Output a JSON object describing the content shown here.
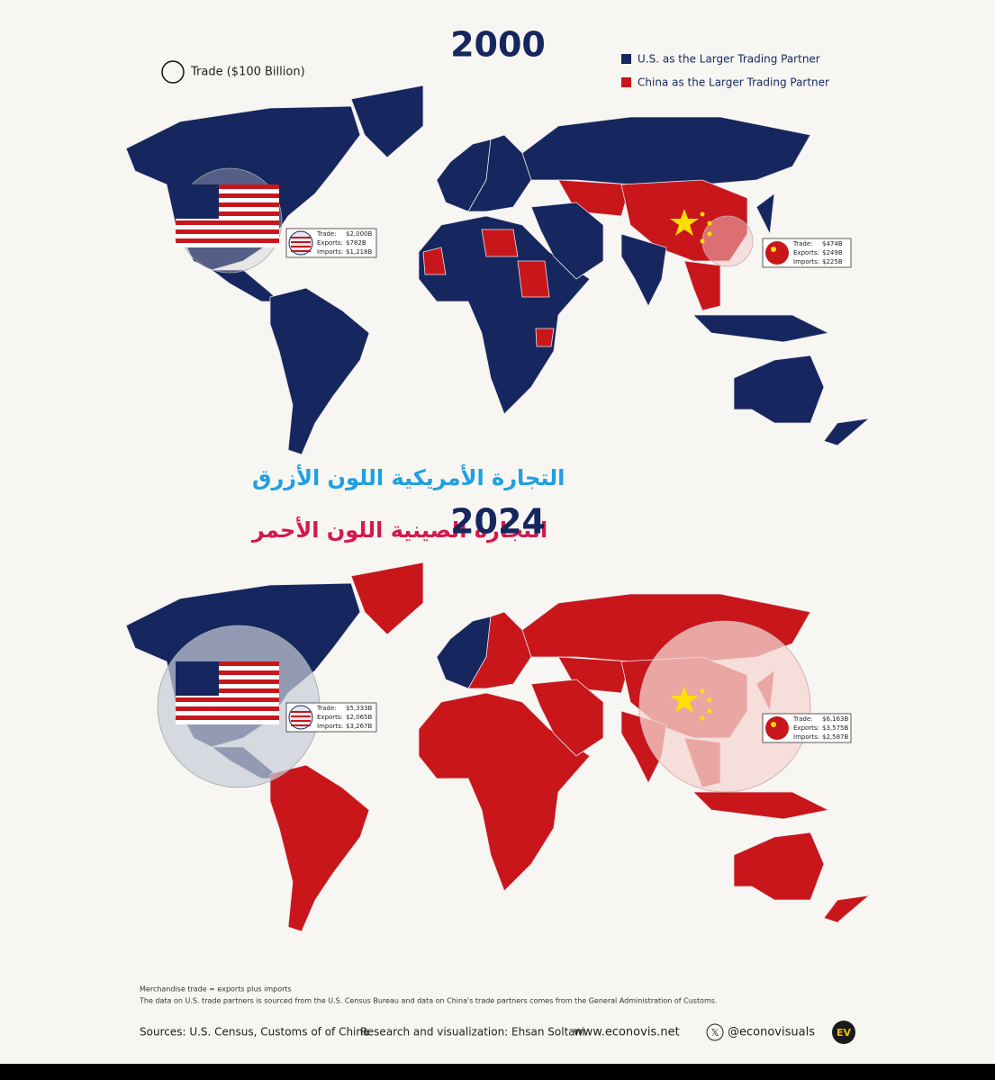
{
  "legend": {
    "size_label": "Trade ($100 Billion)",
    "us_label": "U.S. as the Larger Trading Partner",
    "china_label": "China as the Larger Trading Partner"
  },
  "arabic": {
    "blue": "التجارة الأمريكية اللون الأزرق",
    "red": "التجارة الصينية اللون الأحمر"
  },
  "box_labels": [
    "Trade:",
    "Exports:",
    "Imports:"
  ],
  "maps": [
    {
      "year": "2000",
      "us": [
        "$2,000B",
        "$782B",
        "$1,218B"
      ],
      "china": [
        "$474B",
        "$249B",
        "$225B"
      ]
    },
    {
      "year": "2024",
      "us": [
        "$5,333B",
        "$2,065B",
        "$3,267B"
      ],
      "china": [
        "$6,163B",
        "$3,575B",
        "$2,587B"
      ]
    }
  ],
  "footer": {
    "note1": "Merchandise trade = exports plus imports",
    "note2": "The data on U.S. trade partners is sourced from the U.S. Census Bureau and data on China's trade partners comes from the General Administration of Customs.",
    "sources": "Sources: U.S. Census, Customs of of China",
    "credit": "Research and visualization: Ehsan Soltani",
    "site": "www.econovis.net",
    "handle": "@econovisuals",
    "logo": "EV"
  }
}
